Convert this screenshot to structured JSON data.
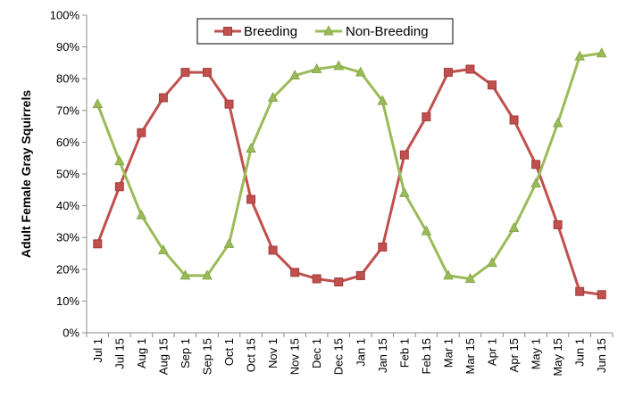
{
  "chart_data": {
    "type": "line",
    "title": "",
    "xlabel": "",
    "ylabel": "Adult Female Gray Squirrels",
    "ylim": [
      0,
      100
    ],
    "y_ticks": [
      "0%",
      "10%",
      "20%",
      "30%",
      "40%",
      "50%",
      "60%",
      "70%",
      "80%",
      "90%",
      "100%"
    ],
    "grid": false,
    "legend_position": "top-center",
    "categories": [
      "Jul 1",
      "Jul 15",
      "Aug 1",
      "Aug 15",
      "Sep 1",
      "Sep 15",
      "Oct 1",
      "Oct 15",
      "Nov 1",
      "Nov 15",
      "Dec 1",
      "Dec 15",
      "Jan 1",
      "Jan 15",
      "Feb 1",
      "Feb 15",
      "Mar 1",
      "Mar 15",
      "Apr 1",
      "Apr 15",
      "May 1",
      "May 15",
      "Jun 1",
      "Jun 15"
    ],
    "series": [
      {
        "name": "Breeding",
        "color": "#c0504d",
        "marker": "square",
        "values": [
          28,
          46,
          63,
          74,
          82,
          82,
          72,
          42,
          26,
          19,
          17,
          16,
          18,
          27,
          56,
          68,
          82,
          83,
          78,
          67,
          53,
          34,
          13,
          12
        ]
      },
      {
        "name": "Non-Breeding",
        "color": "#9bbb59",
        "marker": "triangle",
        "values": [
          72,
          54,
          37,
          26,
          18,
          18,
          28,
          58,
          74,
          81,
          83,
          84,
          82,
          73,
          44,
          32,
          18,
          17,
          22,
          33,
          47,
          66,
          87,
          88
        ]
      }
    ]
  }
}
